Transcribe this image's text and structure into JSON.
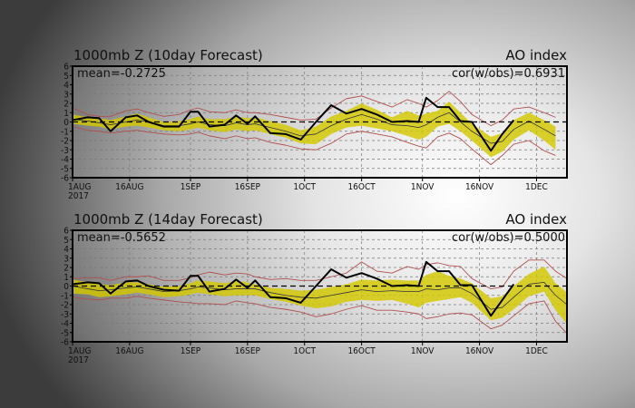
{
  "chart_data": [
    {
      "type": "line",
      "title": "1000mb Z (10day Forecast)",
      "subtitle": "AO index",
      "mean_label": "mean=-0.2725",
      "cor_label": "cor(w/obs)=0.6931",
      "ylim": [
        -6,
        6
      ],
      "yticks": [
        "6",
        "5",
        "4",
        "3",
        "2",
        "1",
        "0",
        "-1",
        "-2",
        "-3",
        "-4",
        "-5",
        "-6"
      ],
      "xlim_days": [
        0,
        130
      ],
      "xticks": [
        {
          "day": 0,
          "label": "1AUG",
          "sublabel": "2017"
        },
        {
          "day": 15,
          "label": "16AUG"
        },
        {
          "day": 31,
          "label": "1SEP"
        },
        {
          "day": 46,
          "label": "16SEP"
        },
        {
          "day": 61,
          "label": "1OCT"
        },
        {
          "day": 76,
          "label": "16OCT"
        },
        {
          "day": 92,
          "label": "1NOV"
        },
        {
          "day": 107,
          "label": "16NOV"
        },
        {
          "day": 122,
          "label": "1DEC"
        }
      ],
      "grid": true,
      "x": [
        0,
        4,
        7,
        10,
        14,
        17,
        20,
        24,
        28,
        31,
        33,
        36,
        40,
        43,
        46,
        48,
        52,
        56,
        60,
        64,
        68,
        72,
        76,
        80,
        84,
        88,
        91,
        93,
        96,
        99,
        102,
        105,
        110,
        113,
        116,
        120,
        124,
        127
      ],
      "series": [
        {
          "name": "observed",
          "color": "#000000",
          "values": [
            0.2,
            0.5,
            0.4,
            -1.0,
            0.5,
            0.7,
            0.0,
            -0.5,
            -0.5,
            1.1,
            1.1,
            -0.5,
            -0.3,
            0.7,
            -0.2,
            0.6,
            -1.2,
            -1.3,
            -1.9,
            0.0,
            1.8,
            0.9,
            1.4,
            0.8,
            0.0,
            0.1,
            0.0,
            2.6,
            1.6,
            1.6,
            0.1,
            0.0,
            -3.1,
            -1.3,
            0.2,
            null,
            null,
            null
          ]
        },
        {
          "name": "ensemble-mean",
          "color": "#333333",
          "values": [
            0.3,
            0.1,
            -0.1,
            -0.3,
            0.0,
            0.2,
            0.0,
            -0.4,
            -0.4,
            -0.2,
            0.0,
            -0.3,
            -0.4,
            -0.1,
            -0.3,
            -0.2,
            -0.6,
            -1.0,
            -1.5,
            -1.3,
            -0.4,
            0.3,
            0.8,
            0.3,
            -0.3,
            -0.4,
            -0.6,
            -0.3,
            0.5,
            1.0,
            0.0,
            -1.0,
            -2.3,
            -2.1,
            -0.8,
            0.1,
            -0.8,
            -1.5
          ]
        },
        {
          "name": "spread-upper",
          "color": "#d4c800",
          "values": [
            0.8,
            0.5,
            0.4,
            0.2,
            0.6,
            0.9,
            0.5,
            0.0,
            0.1,
            0.3,
            0.6,
            0.3,
            0.3,
            0.6,
            0.4,
            0.5,
            0.1,
            -0.3,
            -0.9,
            -0.5,
            0.6,
            1.2,
            2.0,
            1.3,
            0.5,
            1.2,
            0.7,
            0.9,
            1.2,
            2.2,
            1.0,
            -0.2,
            -1.6,
            -1.2,
            0.2,
            1.0,
            0.2,
            -0.5
          ]
        },
        {
          "name": "spread-lower",
          "color": "#d4c800",
          "values": [
            -0.2,
            -0.4,
            -0.5,
            -0.8,
            -0.5,
            -0.4,
            -0.6,
            -0.9,
            -1.0,
            -0.8,
            -0.6,
            -0.9,
            -1.1,
            -0.8,
            -1.0,
            -0.9,
            -1.3,
            -1.7,
            -2.3,
            -2.4,
            -1.3,
            -0.6,
            -0.4,
            -0.7,
            -1.0,
            -1.5,
            -1.9,
            -1.6,
            -0.5,
            -0.2,
            -1.0,
            -2.0,
            -3.8,
            -3.2,
            -1.9,
            -0.9,
            -2.0,
            -3.0
          ]
        },
        {
          "name": "range-max",
          "color": "#b05050",
          "values": [
            1.5,
            0.8,
            0.6,
            0.6,
            1.2,
            1.4,
            1.0,
            0.6,
            0.8,
            1.3,
            1.5,
            1.1,
            1.0,
            1.3,
            1.0,
            1.0,
            0.8,
            0.5,
            0.2,
            0.3,
            1.5,
            2.5,
            2.8,
            2.2,
            1.6,
            2.4,
            2.0,
            1.6,
            2.3,
            3.3,
            2.2,
            0.8,
            -0.4,
            0.2,
            1.4,
            1.6,
            1.0,
            0.5
          ]
        },
        {
          "name": "range-min",
          "color": "#b05050",
          "values": [
            -0.5,
            -0.9,
            -1.0,
            -1.2,
            -1.0,
            -0.9,
            -1.1,
            -1.3,
            -1.4,
            -1.3,
            -1.1,
            -1.5,
            -1.8,
            -1.5,
            -1.8,
            -1.7,
            -2.2,
            -2.5,
            -2.9,
            -3.0,
            -2.3,
            -1.3,
            -1.0,
            -1.3,
            -1.6,
            -2.2,
            -2.6,
            -2.8,
            -1.6,
            -1.2,
            -1.8,
            -2.9,
            -4.6,
            -3.6,
            -2.4,
            -2.0,
            -3.1,
            -3.6
          ]
        }
      ]
    },
    {
      "type": "line",
      "title": "1000mb Z (14day Forecast)",
      "subtitle": "AO index",
      "mean_label": "mean=-0.5652",
      "cor_label": "cor(w/obs)=0.5000",
      "ylim": [
        -6,
        6
      ],
      "yticks": [
        "6",
        "5",
        "4",
        "3",
        "2",
        "1",
        "0",
        "-1",
        "-2",
        "-3",
        "-4",
        "-5",
        "-6"
      ],
      "xlim_days": [
        0,
        130
      ],
      "xticks": [
        {
          "day": 0,
          "label": "1AUG",
          "sublabel": "2017"
        },
        {
          "day": 15,
          "label": "16AUG"
        },
        {
          "day": 31,
          "label": "1SEP"
        },
        {
          "day": 46,
          "label": "16SEP"
        },
        {
          "day": 61,
          "label": "1OCT"
        },
        {
          "day": 76,
          "label": "16OCT"
        },
        {
          "day": 92,
          "label": "1NOV"
        },
        {
          "day": 107,
          "label": "16NOV"
        },
        {
          "day": 122,
          "label": "1DEC"
        }
      ],
      "grid": true,
      "x": [
        0,
        4,
        7,
        10,
        14,
        17,
        20,
        24,
        28,
        31,
        33,
        36,
        40,
        43,
        46,
        48,
        52,
        56,
        60,
        64,
        68,
        72,
        76,
        80,
        84,
        88,
        91,
        93,
        96,
        99,
        102,
        105,
        110,
        113,
        116,
        120,
        124,
        127,
        130
      ],
      "series": [
        {
          "name": "observed",
          "color": "#000000",
          "values": [
            0.2,
            0.4,
            0.3,
            -0.8,
            0.5,
            0.6,
            0.0,
            -0.4,
            -0.5,
            1.1,
            1.1,
            -0.6,
            -0.3,
            0.7,
            -0.2,
            0.6,
            -1.2,
            -1.3,
            -1.8,
            0.0,
            1.8,
            0.9,
            1.4,
            0.8,
            0.0,
            0.1,
            0.0,
            2.6,
            1.6,
            1.6,
            0.1,
            0.1,
            -3.2,
            -1.5,
            0.2,
            null,
            null,
            null,
            null
          ]
        },
        {
          "name": "ensemble-mean",
          "color": "#333333",
          "values": [
            0.0,
            -0.3,
            -0.5,
            -0.4,
            -0.2,
            -0.1,
            -0.3,
            -0.6,
            -0.5,
            -0.3,
            -0.1,
            -0.2,
            -0.4,
            -0.3,
            -0.3,
            -0.3,
            -0.7,
            -1.0,
            -1.2,
            -1.3,
            -1.0,
            -0.7,
            -0.4,
            -0.6,
            -0.5,
            -0.6,
            -0.6,
            -0.3,
            -0.4,
            -0.2,
            -0.2,
            -0.8,
            -2.5,
            -2.3,
            -1.2,
            0.2,
            0.4,
            -1.0,
            -2.0
          ]
        },
        {
          "name": "spread-upper",
          "color": "#d4c800",
          "values": [
            0.7,
            0.4,
            0.2,
            0.1,
            0.4,
            0.4,
            0.2,
            -0.1,
            0.0,
            0.3,
            0.6,
            0.5,
            0.3,
            0.6,
            0.4,
            0.2,
            -0.2,
            -0.3,
            -0.5,
            -0.4,
            -0.1,
            0.2,
            0.7,
            0.6,
            0.7,
            0.6,
            0.6,
            1.2,
            1.6,
            1.1,
            0.8,
            0.3,
            -1.3,
            -1.1,
            0.0,
            1.3,
            2.1,
            0.3,
            -0.7
          ]
        },
        {
          "name": "spread-lower",
          "color": "#d4c800",
          "values": [
            -0.8,
            -0.9,
            -1.2,
            -1.1,
            -0.9,
            -0.7,
            -0.9,
            -1.2,
            -1.1,
            -0.9,
            -0.7,
            -0.9,
            -1.1,
            -1.0,
            -1.0,
            -1.0,
            -1.4,
            -1.7,
            -2.1,
            -2.4,
            -2.2,
            -1.7,
            -1.5,
            -1.6,
            -1.5,
            -1.9,
            -2.3,
            -1.8,
            -1.6,
            -1.4,
            -1.2,
            -1.8,
            -3.7,
            -3.4,
            -2.5,
            -1.1,
            -0.6,
            -2.6,
            -4.1
          ]
        },
        {
          "name": "range-max",
          "color": "#b05050",
          "values": [
            0.8,
            0.9,
            0.9,
            0.6,
            1.0,
            1.0,
            1.1,
            0.6,
            0.6,
            0.9,
            1.2,
            1.5,
            1.2,
            1.4,
            1.3,
            1.0,
            0.7,
            0.8,
            0.6,
            0.6,
            1.0,
            1.4,
            2.6,
            1.6,
            1.4,
            2.1,
            1.8,
            2.3,
            2.5,
            2.2,
            2.1,
            0.8,
            -0.3,
            -0.1,
            1.6,
            2.8,
            2.8,
            1.6,
            0.8
          ]
        },
        {
          "name": "range-min",
          "color": "#b05050",
          "values": [
            -1.2,
            -1.4,
            -1.5,
            -1.3,
            -1.3,
            -1.1,
            -1.3,
            -1.5,
            -1.7,
            -1.8,
            -1.9,
            -1.9,
            -2.0,
            -1.6,
            -1.8,
            -1.9,
            -2.3,
            -2.5,
            -2.8,
            -3.3,
            -3.0,
            -2.5,
            -2.1,
            -2.6,
            -2.6,
            -2.8,
            -3.0,
            -3.5,
            -3.3,
            -3.0,
            -2.9,
            -3.1,
            -4.6,
            -4.2,
            -3.2,
            -1.9,
            -1.6,
            -3.8,
            -5.1
          ]
        }
      ]
    }
  ]
}
